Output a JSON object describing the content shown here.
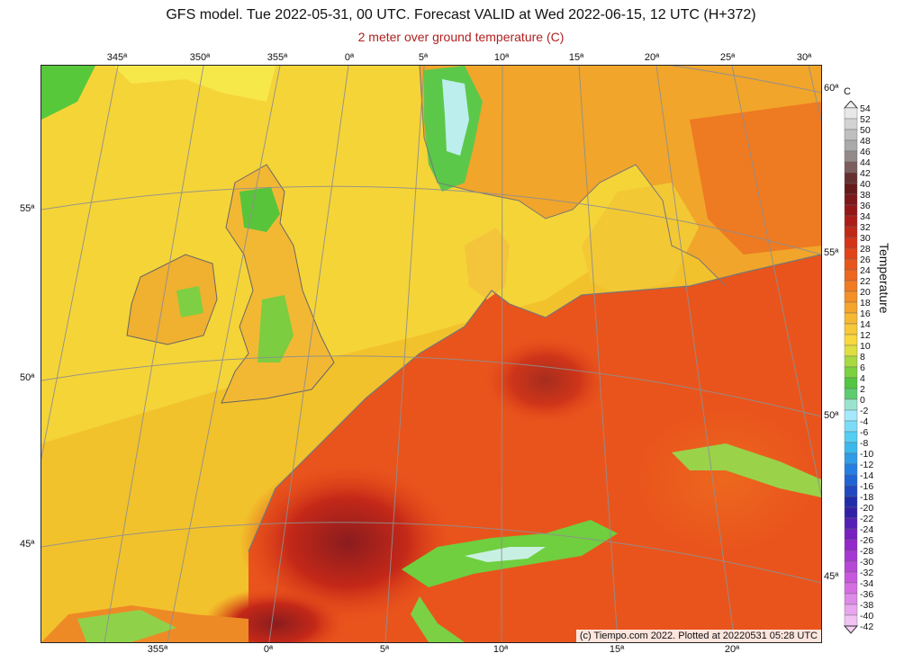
{
  "title": "GFS model. Tue 2022-05-31, 00 UTC. Forecast VALID at Wed 2022-06-15, 12 UTC (H+372)",
  "subtitle": "2 meter over ground temperature (C)",
  "copyright": "(c) Tiempo.com 2022. Plotted at 20220531 05:28 UTC",
  "colorbar": {
    "unit": "C",
    "title": "Temperature",
    "ticks": [
      "54",
      "52",
      "50",
      "48",
      "46",
      "44",
      "42",
      "40",
      "38",
      "36",
      "34",
      "32",
      "30",
      "28",
      "26",
      "24",
      "22",
      "20",
      "18",
      "16",
      "14",
      "12",
      "10",
      "8",
      "6",
      "4",
      "2",
      "0",
      "-2",
      "-4",
      "-6",
      "-8",
      "-10",
      "-12",
      "-14",
      "-16",
      "-18",
      "-20",
      "-22",
      "-24",
      "-26",
      "-28",
      "-30",
      "-32",
      "-34",
      "-36",
      "-38",
      "-40",
      "-42"
    ]
  },
  "lon_labels_top": [
    "345ª",
    "350ª",
    "355ª",
    "0ª",
    "5ª",
    "10ª",
    "15ª",
    "20ª",
    "25ª",
    "30ª"
  ],
  "lon_labels_bottom": [
    "355ª",
    "0ª",
    "5ª",
    "10ª",
    "15ª",
    "20ª"
  ],
  "lat_labels_left": [
    "55ª",
    "50ª",
    "45ª"
  ],
  "lat_labels_right": [
    "60ª",
    "55ª",
    "50ª",
    "45ª"
  ],
  "palette": {
    "sea_warm": "#f2c830",
    "sea_cool": "#f5dd40",
    "land_hot": "#e84e1a",
    "land_very_hot": "#c42818",
    "land_extreme": "#8a1c1e",
    "land_cool": "#56c83a",
    "mountain_cold": "#bff0ff",
    "coast": "#7a7a7a",
    "grid": "#8f8f8f"
  }
}
